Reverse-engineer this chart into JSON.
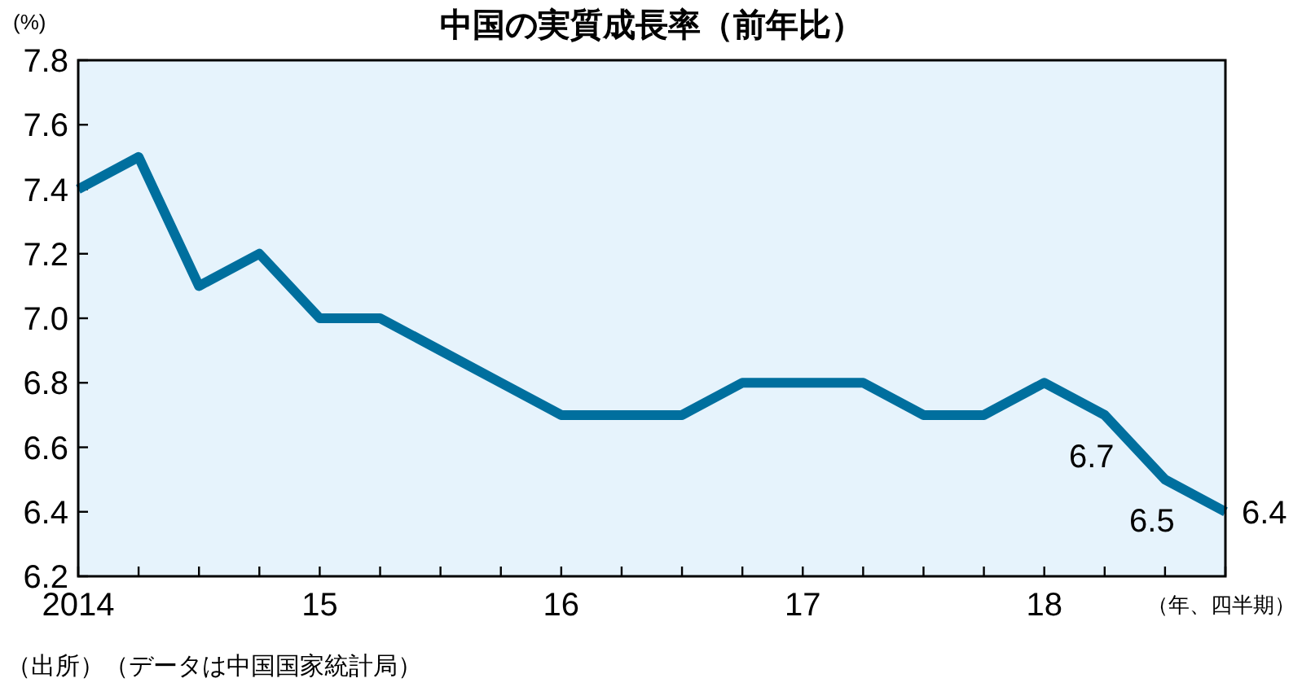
{
  "chart_data": {
    "type": "line",
    "title": "中国の実質成長率（前年比）",
    "ylabel": "(%)",
    "xlabel": "（年、四半期）",
    "categories": [
      "2014",
      null,
      null,
      null,
      "15",
      null,
      null,
      null,
      "16",
      null,
      null,
      null,
      "17",
      null,
      null,
      null,
      "18",
      null,
      null,
      null
    ],
    "series": [
      {
        "color": "#006f9e",
        "values": [
          7.4,
          7.5,
          7.1,
          7.2,
          7.0,
          7.0,
          6.9,
          6.8,
          6.7,
          6.7,
          6.7,
          6.8,
          6.8,
          6.8,
          6.7,
          6.7,
          6.8,
          6.7,
          6.5,
          6.4
        ],
        "value_labels": [
          null,
          null,
          null,
          null,
          null,
          null,
          null,
          null,
          null,
          null,
          null,
          null,
          null,
          null,
          null,
          null,
          null,
          "6.7",
          "6.5",
          "6.4"
        ]
      }
    ],
    "ylim": [
      6.2,
      7.8
    ],
    "yticks": [
      {
        "value": 6.2,
        "label": "6.2"
      },
      {
        "value": 6.4,
        "label": "6.4"
      },
      {
        "value": 6.6,
        "label": "6.6"
      },
      {
        "value": 6.8,
        "label": "6.8"
      },
      {
        "value": 7.0,
        "label": "7.0"
      },
      {
        "value": 7.2,
        "label": "7.2"
      },
      {
        "value": 7.4,
        "label": "7.4"
      },
      {
        "value": 7.6,
        "label": "7.6"
      },
      {
        "value": 7.8,
        "label": "7.8"
      }
    ],
    "annotations": [
      "（出所）（データは中国国家統計局）"
    ]
  }
}
